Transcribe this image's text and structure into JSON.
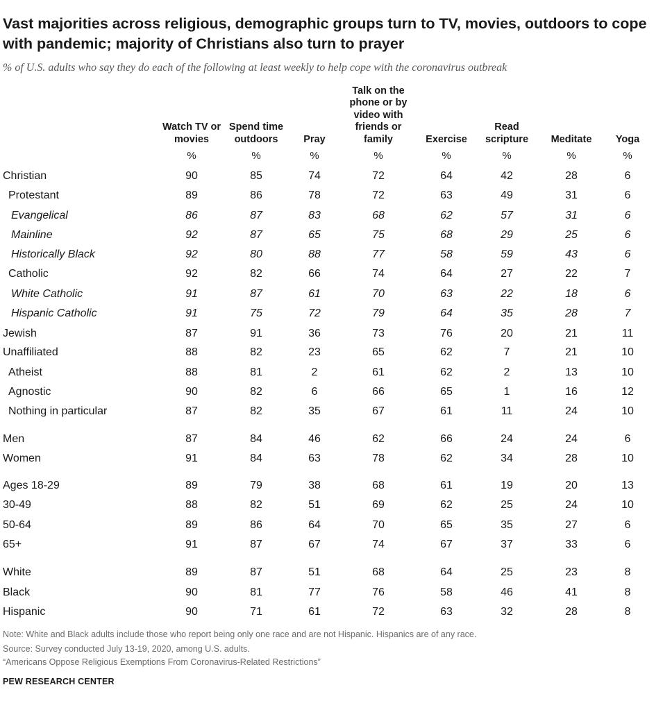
{
  "header": {
    "title": "Vast majorities across religious, demographic groups turn to TV, movies, outdoors to cope with pandemic; majority of Christians also turn to prayer",
    "subtitle": "% of U.S. adults who say they do each of the following at least weekly to help cope with the coronavirus outbreak"
  },
  "chart_data": {
    "type": "table",
    "columns": [
      {
        "label": "Watch TV or movies",
        "unit": "%"
      },
      {
        "label": "Spend time outdoors",
        "unit": "%"
      },
      {
        "label": "Pray",
        "unit": "%"
      },
      {
        "label": "Talk on the phone or by video with friends or family",
        "unit": "%"
      },
      {
        "label": "Exercise",
        "unit": "%"
      },
      {
        "label": "Read scripture",
        "unit": "%"
      },
      {
        "label": "Meditate",
        "unit": "%"
      },
      {
        "label": "Yoga",
        "unit": "%"
      }
    ],
    "rows": [
      {
        "label": "Christian",
        "level": 0,
        "italic": false,
        "values": [
          90,
          85,
          74,
          72,
          64,
          42,
          28,
          6
        ]
      },
      {
        "label": "Protestant",
        "level": 1,
        "italic": false,
        "values": [
          89,
          86,
          78,
          72,
          63,
          49,
          31,
          6
        ]
      },
      {
        "label": "Evangelical",
        "level": 2,
        "italic": true,
        "values": [
          86,
          87,
          83,
          68,
          62,
          57,
          31,
          6
        ]
      },
      {
        "label": "Mainline",
        "level": 2,
        "italic": true,
        "values": [
          92,
          87,
          65,
          75,
          68,
          29,
          25,
          6
        ]
      },
      {
        "label": "Historically Black",
        "level": 2,
        "italic": true,
        "values": [
          92,
          80,
          88,
          77,
          58,
          59,
          43,
          6
        ]
      },
      {
        "label": "Catholic",
        "level": 1,
        "italic": false,
        "values": [
          92,
          82,
          66,
          74,
          64,
          27,
          22,
          7
        ]
      },
      {
        "label": "White Catholic",
        "level": 2,
        "italic": true,
        "values": [
          91,
          87,
          61,
          70,
          63,
          22,
          18,
          6
        ]
      },
      {
        "label": "Hispanic Catholic",
        "level": 2,
        "italic": true,
        "values": [
          91,
          75,
          72,
          79,
          64,
          35,
          28,
          7
        ]
      },
      {
        "label": "Jewish",
        "level": 0,
        "italic": false,
        "values": [
          87,
          91,
          36,
          73,
          76,
          20,
          21,
          11
        ]
      },
      {
        "label": "Unaffiliated",
        "level": 0,
        "italic": false,
        "values": [
          88,
          82,
          23,
          65,
          62,
          7,
          21,
          10
        ]
      },
      {
        "label": "Atheist",
        "level": 1,
        "italic": false,
        "values": [
          88,
          81,
          2,
          61,
          62,
          2,
          13,
          10
        ]
      },
      {
        "label": "Agnostic",
        "level": 1,
        "italic": false,
        "values": [
          90,
          82,
          6,
          66,
          65,
          1,
          16,
          12
        ]
      },
      {
        "label": "Nothing in particular",
        "level": 1,
        "italic": false,
        "values": [
          87,
          82,
          35,
          67,
          61,
          11,
          24,
          10
        ]
      },
      {
        "label": "Men",
        "level": 0,
        "italic": false,
        "values": [
          87,
          84,
          46,
          62,
          66,
          24,
          24,
          6
        ]
      },
      {
        "label": "Women",
        "level": 0,
        "italic": false,
        "values": [
          91,
          84,
          63,
          78,
          62,
          34,
          28,
          10
        ]
      },
      {
        "label": "Ages 18-29",
        "level": 0,
        "italic": false,
        "values": [
          89,
          79,
          38,
          68,
          61,
          19,
          20,
          13
        ]
      },
      {
        "label": "30-49",
        "level": 0,
        "italic": false,
        "values": [
          88,
          82,
          51,
          69,
          62,
          25,
          24,
          10
        ]
      },
      {
        "label": "50-64",
        "level": 0,
        "italic": false,
        "values": [
          89,
          86,
          64,
          70,
          65,
          35,
          27,
          6
        ]
      },
      {
        "label": "65+",
        "level": 0,
        "italic": false,
        "values": [
          91,
          87,
          67,
          74,
          67,
          37,
          33,
          6
        ]
      },
      {
        "label": "White",
        "level": 0,
        "italic": false,
        "values": [
          89,
          87,
          51,
          68,
          64,
          25,
          23,
          8
        ]
      },
      {
        "label": "Black",
        "level": 0,
        "italic": false,
        "values": [
          90,
          81,
          77,
          76,
          58,
          46,
          41,
          8
        ]
      },
      {
        "label": "Hispanic",
        "level": 0,
        "italic": false,
        "values": [
          90,
          71,
          61,
          72,
          63,
          32,
          28,
          8
        ]
      }
    ]
  },
  "footer": {
    "note": "Note: White and Black adults include those who report being only one race and are not Hispanic. Hispanics are of any race.",
    "source": "Source: Survey conducted July 13-19, 2020, among U.S. adults.",
    "report": "“Americans Oppose Religious Exemptions From Coronavirus-Related Restrictions”",
    "brand": "PEW RESEARCH CENTER"
  }
}
